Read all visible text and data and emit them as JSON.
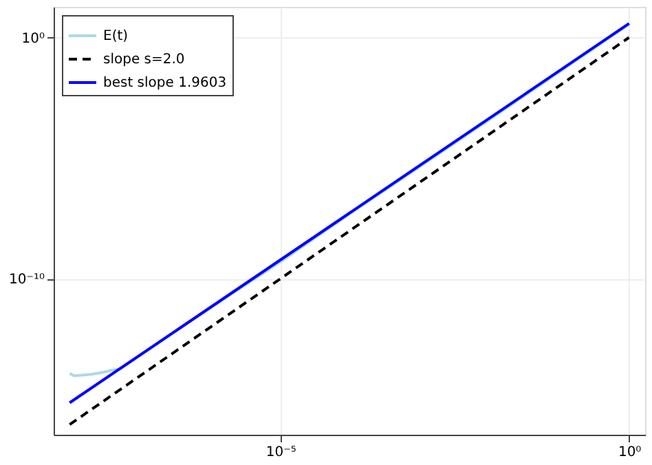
{
  "chart_data": {
    "type": "line",
    "log": "xy",
    "grid": true,
    "legend": "top left",
    "xlim": [
      5.6e-09,
      1.7
    ],
    "ylim": [
      3.4e-17,
      18.6
    ],
    "xticks": [
      {
        "value": 1e-05,
        "label": "10⁻⁵"
      },
      {
        "value": 1,
        "label": "10⁰"
      }
    ],
    "yticks": [
      {
        "value": 1e-10,
        "label": "10⁻¹⁰"
      },
      {
        "value": 1,
        "label": "10⁰"
      }
    ],
    "series": [
      {
        "name": "E(t)",
        "color": "#add8e6",
        "line_style": "solid",
        "x": [
          9.5e-09,
          1.1e-08,
          1.4e-08,
          2e-08,
          2.8e-08,
          3.8e-08,
          5e-08,
          1e-06,
          1e-05,
          0.0001,
          0.01,
          1
        ],
        "values": [
          1.2e-14,
          9.5e-15,
          1e-14,
          1.1e-14,
          1.3e-14,
          1.6e-14,
          1.8e-14,
          6.3e-12,
          5e-10,
          5e-08,
          0.0004,
          3.5
        ]
      },
      {
        "name": "slope s=2.0",
        "color": "#000000",
        "line_style": "dashed",
        "x": [
          9.5e-09,
          1
        ],
        "values": [
          9e-17,
          1
        ]
      },
      {
        "name": "best slope 1.9603",
        "color": "#0000ff",
        "line_style": "solid",
        "x": [
          9.5e-09,
          1
        ],
        "values": [
          7.2e-16,
          3.8
        ]
      }
    ]
  }
}
